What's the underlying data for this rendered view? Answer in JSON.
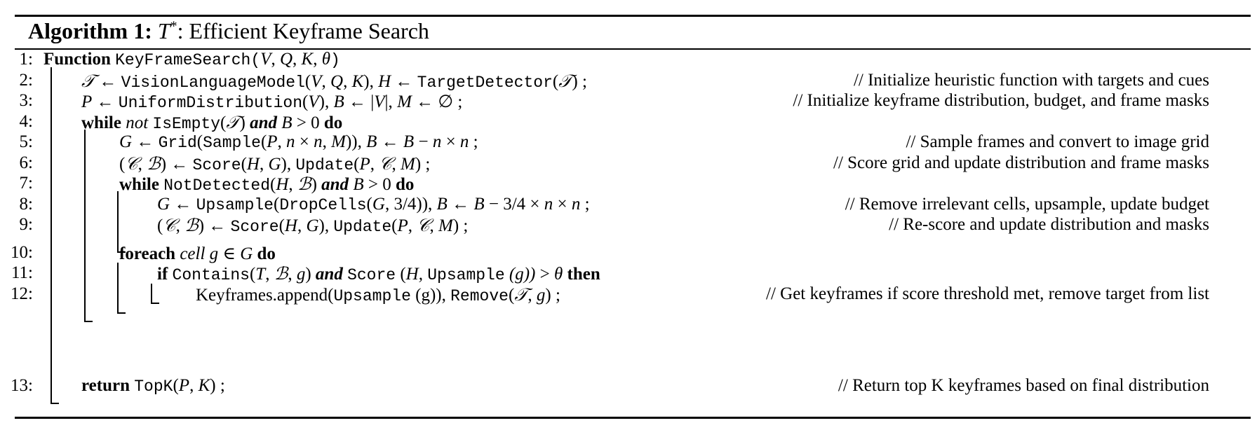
{
  "algorithm": {
    "label": "Algorithm 1:",
    "symbol": "T",
    "symbol_sup": "*",
    "title_rest": ": Efficient Keyframe Search"
  },
  "lines": [
    {
      "num": "1:"
    },
    {
      "num": "2:",
      "comment": "// Initialize heuristic function with targets and cues"
    },
    {
      "num": "3:",
      "comment": "// Initialize keyframe distribution, budget, and frame masks"
    },
    {
      "num": "4:"
    },
    {
      "num": "5:",
      "comment": "// Sample frames and convert to image grid"
    },
    {
      "num": "6:",
      "comment": "// Score grid and update distribution and frame masks"
    },
    {
      "num": "7:"
    },
    {
      "num": "8:",
      "comment": "// Remove irrelevant cells, upsample, update budget"
    },
    {
      "num": "9:",
      "comment": "// Re-score and update distribution and masks"
    },
    {
      "num": "10:"
    },
    {
      "num": "11:"
    },
    {
      "num": "12:",
      "comment": "// Get keyframes if score threshold met, remove target from list"
    },
    {
      "num": "13:",
      "comment": "// Return top K keyframes based on final distribution"
    }
  ],
  "kw": {
    "function": "Function",
    "while": "while",
    "not": "not",
    "and": "and",
    "do": "do",
    "foreach": "foreach",
    "cell": "cell",
    "if": "if",
    "then": "then",
    "return": "return"
  },
  "fn": {
    "keyframesearch": "KeyFrameSearch",
    "vlm": "VisionLanguageModel",
    "targetdetector": "TargetDetector",
    "uniform": "UniformDistribution",
    "isempty": "IsEmpty",
    "grid": "Grid",
    "sample": "Sample",
    "score": "Score",
    "update": "Update",
    "notdetected": "NotDetected",
    "upsample": "Upsample",
    "dropcells": "DropCells",
    "contains": "Contains",
    "remove": "Remove",
    "topk": "TopK",
    "append": "Keyframes.append"
  }
}
